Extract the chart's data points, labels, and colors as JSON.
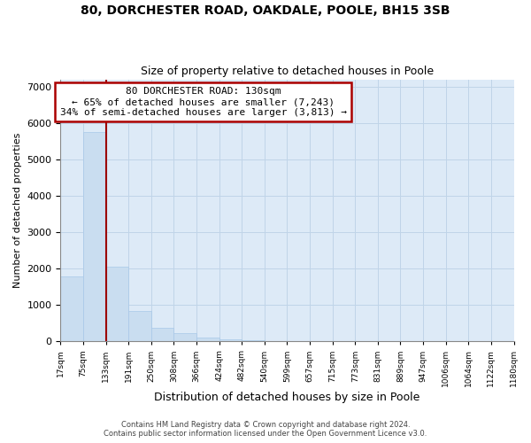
{
  "title1": "80, DORCHESTER ROAD, OAKDALE, POOLE, BH15 3SB",
  "title2": "Size of property relative to detached houses in Poole",
  "xlabel": "Distribution of detached houses by size in Poole",
  "ylabel": "Number of detached properties",
  "bar_values": [
    1780,
    5750,
    2050,
    830,
    380,
    230,
    110,
    50,
    20,
    10,
    5,
    0,
    0,
    0,
    0,
    0,
    0,
    0,
    0,
    0
  ],
  "bin_labels": [
    "17sqm",
    "75sqm",
    "133sqm",
    "191sqm",
    "250sqm",
    "308sqm",
    "366sqm",
    "424sqm",
    "482sqm",
    "540sqm",
    "599sqm",
    "657sqm",
    "715sqm",
    "773sqm",
    "831sqm",
    "889sqm",
    "947sqm",
    "1006sqm",
    "1064sqm",
    "1122sqm",
    "1180sqm"
  ],
  "bar_color": "#c9ddf0",
  "bar_edgecolor": "#a8c8e8",
  "grid_color": "#c0d4e8",
  "plot_bg_color": "#ddeaf7",
  "vline_color": "#9b0000",
  "annotation_text": "80 DORCHESTER ROAD: 130sqm\n← 65% of detached houses are smaller (7,243)\n34% of semi-detached houses are larger (3,813) →",
  "annotation_box_edgecolor": "#aa0000",
  "annotation_box_facecolor": "#ffffff",
  "ylim": [
    0,
    7200
  ],
  "yticks": [
    0,
    1000,
    2000,
    3000,
    4000,
    5000,
    6000,
    7000
  ],
  "footer1": "Contains HM Land Registry data © Crown copyright and database right 2024.",
  "footer2": "Contains public sector information licensed under the Open Government Licence v3.0."
}
